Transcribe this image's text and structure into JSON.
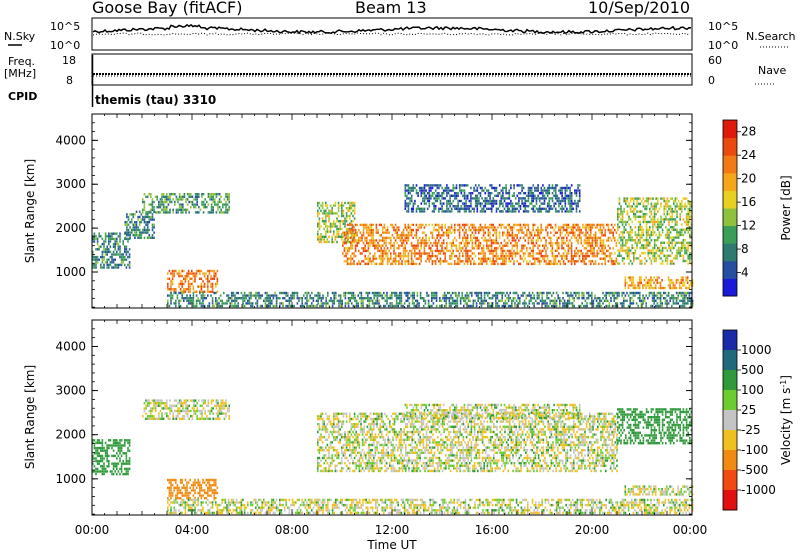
{
  "header": {
    "station": "Goose Bay (fitACF)",
    "beam": "Beam 13",
    "date": "10/Sep/2010"
  },
  "strip_nsky": {
    "left_label": "N.Sky",
    "right_label": "N.Search",
    "left_ticks": [
      "10^5",
      "10^0"
    ],
    "right_ticks": [
      "10^5",
      "10^0"
    ]
  },
  "strip_freq": {
    "left_label": "Freq.",
    "left_unit": "[MHz]",
    "right_label": "Nave",
    "left_ticks": [
      "18",
      "8"
    ],
    "right_ticks": [
      "60",
      "0"
    ]
  },
  "cpid": {
    "label": "CPID",
    "value": "themis (tau) 3310"
  },
  "x_axis": {
    "label": "Time UT",
    "ticks": [
      "00:00",
      "04:00",
      "08:00",
      "12:00",
      "16:00",
      "20:00",
      "00:00"
    ],
    "range_hours": [
      0,
      24
    ]
  },
  "y_axis": {
    "label": "Slant Range [km]",
    "ticks": [
      1000,
      2000,
      3000,
      4000
    ],
    "range_km": [
      180,
      4600
    ]
  },
  "power_scale": {
    "label": "Power [dB]",
    "ticks": [
      "4",
      "8",
      "12",
      "16",
      "20",
      "24",
      "28"
    ],
    "colors": [
      "#1a1ad8",
      "#264fa0",
      "#2f7a6f",
      "#3a9e56",
      "#8fc23c",
      "#e8d020",
      "#f6a61a",
      "#f27a14",
      "#ea4a0e",
      "#e01a0a"
    ]
  },
  "velocity_scale": {
    "label": "Velocity [m s",
    "label_sup": "-1",
    "label_end": "]",
    "ticks": [
      "1000",
      "500",
      "100",
      "25",
      "-25",
      "-100",
      "-500",
      "-1000"
    ],
    "colors": [
      "#1a2aa8",
      "#1f6a7a",
      "#2f9a3a",
      "#6ccc30",
      "#c4c4c4",
      "#f0c020",
      "#f08a10",
      "#f04a10",
      "#e01010"
    ]
  },
  "chart_data": [
    {
      "type": "heatmap",
      "title": "Power",
      "xlabel": "Time UT",
      "ylabel": "Slant Range [km]",
      "x_unit": "hours UT",
      "xlim": [
        0,
        24
      ],
      "ylim": [
        180,
        4600
      ],
      "colorbar_label": "Power [dB]",
      "colorbar_ticks": [
        4,
        8,
        12,
        16,
        20,
        24,
        28
      ],
      "regions": [
        {
          "t_start": 0.0,
          "t_end": 1.5,
          "r_start": 1100,
          "r_end": 1900,
          "power_db": 8
        },
        {
          "t_start": 1.3,
          "t_end": 2.5,
          "r_start": 1800,
          "r_end": 2400,
          "power_db": 8
        },
        {
          "t_start": 2.0,
          "t_end": 5.5,
          "r_start": 2350,
          "r_end": 2800,
          "power_db": 10
        },
        {
          "t_start": 3.0,
          "t_end": 5.0,
          "r_start": 550,
          "r_end": 1050,
          "power_db": 22
        },
        {
          "t_start": 3.0,
          "t_end": 24.0,
          "r_start": 200,
          "r_end": 550,
          "power_db": 8
        },
        {
          "t_start": 9.0,
          "t_end": 10.5,
          "r_start": 1700,
          "r_end": 2600,
          "power_db": 14
        },
        {
          "t_start": 10.0,
          "t_end": 21.0,
          "r_start": 1200,
          "r_end": 2100,
          "power_db": 22
        },
        {
          "t_start": 12.5,
          "t_end": 19.5,
          "r_start": 2350,
          "r_end": 3000,
          "power_db": 6
        },
        {
          "t_start": 21.0,
          "t_end": 24.0,
          "r_start": 1200,
          "r_end": 2700,
          "power_db": 14
        },
        {
          "t_start": 21.3,
          "t_end": 24.0,
          "r_start": 650,
          "r_end": 900,
          "power_db": 20
        }
      ]
    },
    {
      "type": "heatmap",
      "title": "Velocity",
      "xlabel": "Time UT",
      "ylabel": "Slant Range [km]",
      "x_unit": "hours UT",
      "xlim": [
        0,
        24
      ],
      "ylim": [
        180,
        4600
      ],
      "colorbar_label": "Velocity [m s-1]",
      "colorbar_ticks": [
        1000,
        500,
        100,
        25,
        -25,
        -100,
        -500,
        -1000
      ],
      "regions": [
        {
          "t_start": 0.0,
          "t_end": 1.5,
          "r_start": 1100,
          "r_end": 1900,
          "velocity_ms": 200
        },
        {
          "t_start": 2.0,
          "t_end": 5.5,
          "r_start": 2350,
          "r_end": 2800,
          "velocity_ms": 0
        },
        {
          "t_start": 3.0,
          "t_end": 5.0,
          "r_start": 550,
          "r_end": 1000,
          "velocity_ms": -200
        },
        {
          "t_start": 3.0,
          "t_end": 24.0,
          "r_start": 200,
          "r_end": 550,
          "velocity_ms": 0
        },
        {
          "t_start": 9.0,
          "t_end": 21.0,
          "r_start": 1200,
          "r_end": 2500,
          "velocity_ms": 0
        },
        {
          "t_start": 12.5,
          "t_end": 19.5,
          "r_start": 2400,
          "r_end": 2700,
          "velocity_ms": 0
        },
        {
          "t_start": 21.0,
          "t_end": 24.0,
          "r_start": 1800,
          "r_end": 2600,
          "velocity_ms": 150
        },
        {
          "t_start": 21.3,
          "t_end": 24.0,
          "r_start": 650,
          "r_end": 850,
          "velocity_ms": 0
        }
      ]
    }
  ]
}
